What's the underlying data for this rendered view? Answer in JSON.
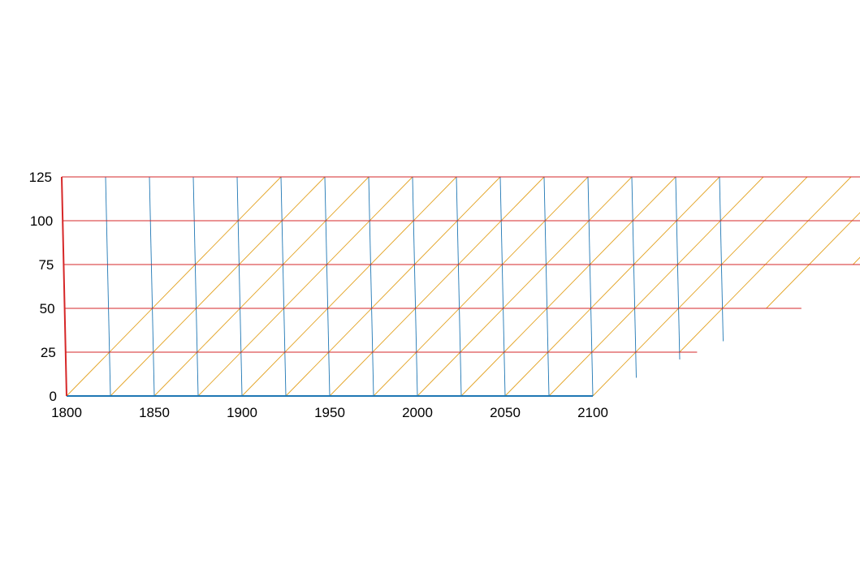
{
  "chart_data": {
    "type": "ternary",
    "title": "",
    "a_axis": {
      "ticks": [
        "1800",
        "1850",
        "1900",
        "1950",
        "2000",
        "2050",
        "2100"
      ],
      "range": [
        1800,
        2100
      ],
      "color": "#1f77b4"
    },
    "b_axis": {
      "ticks": [
        "0",
        "25",
        "50",
        "75",
        "100",
        "125"
      ],
      "range": [
        0,
        125
      ],
      "color": "#d62728"
    },
    "grid": {
      "a_lines": [
        1825,
        1850,
        1875,
        1900,
        1925,
        1950,
        1975,
        2000,
        2025,
        2050,
        2075,
        2100,
        2125,
        2150,
        2175
      ],
      "b_lines": [
        25,
        50,
        75,
        100,
        125
      ],
      "c_lines_count": 17,
      "a_color": "#1f77b4",
      "b_color": "#d62728",
      "c_color": "#e3a324"
    },
    "series": []
  }
}
